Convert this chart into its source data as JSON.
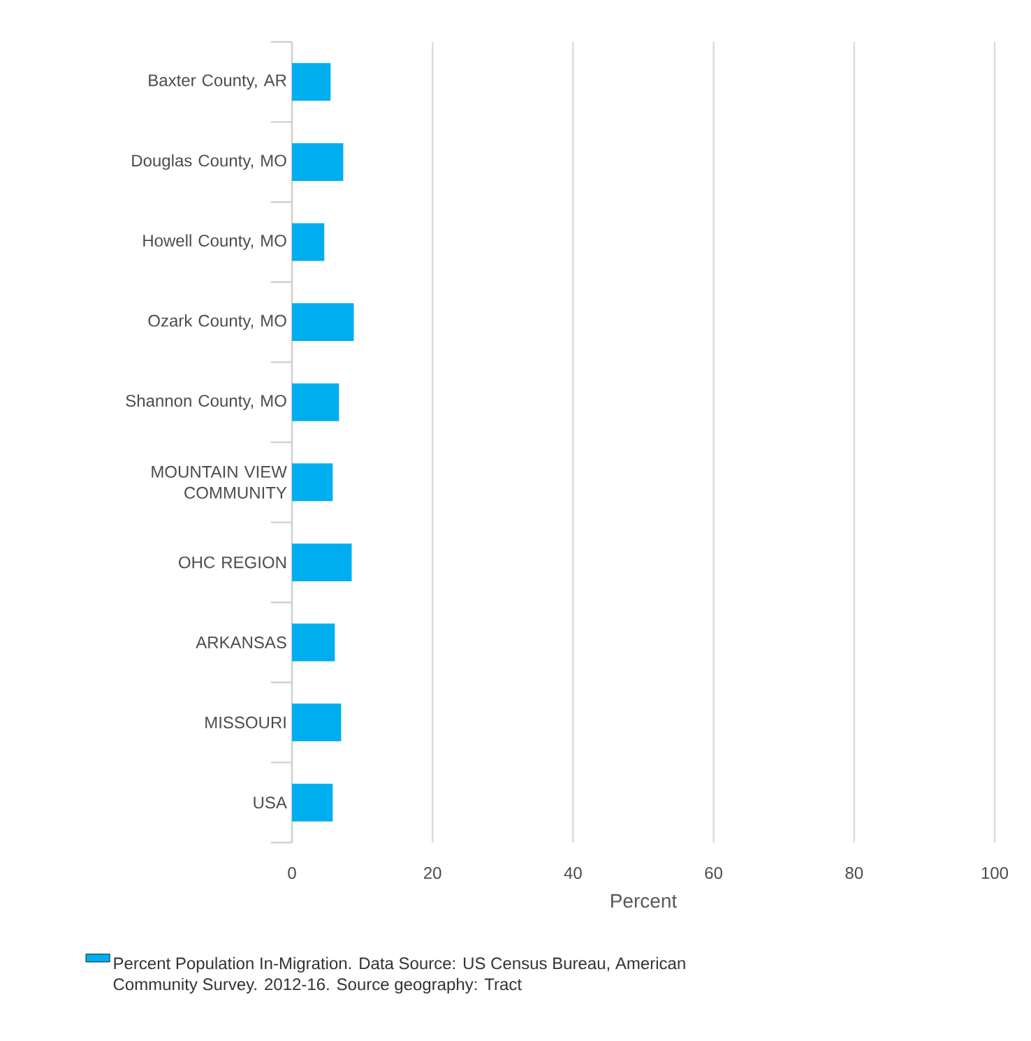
{
  "chart_data": {
    "type": "bar",
    "orientation": "horizontal",
    "categories": [
      "Baxter County, AR",
      "Douglas County, MO",
      "Howell County, MO",
      "Ozark County, MO",
      "Shannon County, MO",
      "MOUNTAIN VIEW COMMUNITY",
      "OHC REGION",
      "ARKANSAS",
      "MISSOURI",
      "USA"
    ],
    "series": [
      {
        "name": "Percent Population In-Migration. Data Source: US Census Bureau, American Community Survey. 2012-16. Source geography: Tract",
        "color": "#00aeef",
        "values": [
          5.5,
          7.3,
          4.6,
          8.8,
          6.7,
          5.8,
          8.5,
          6.1,
          7.0,
          5.8
        ]
      }
    ],
    "xlabel": "Percent",
    "xlim": [
      0,
      100
    ],
    "xticks": [
      0,
      20,
      40,
      60,
      80,
      100
    ],
    "grid": "x",
    "legend": "bottom"
  }
}
